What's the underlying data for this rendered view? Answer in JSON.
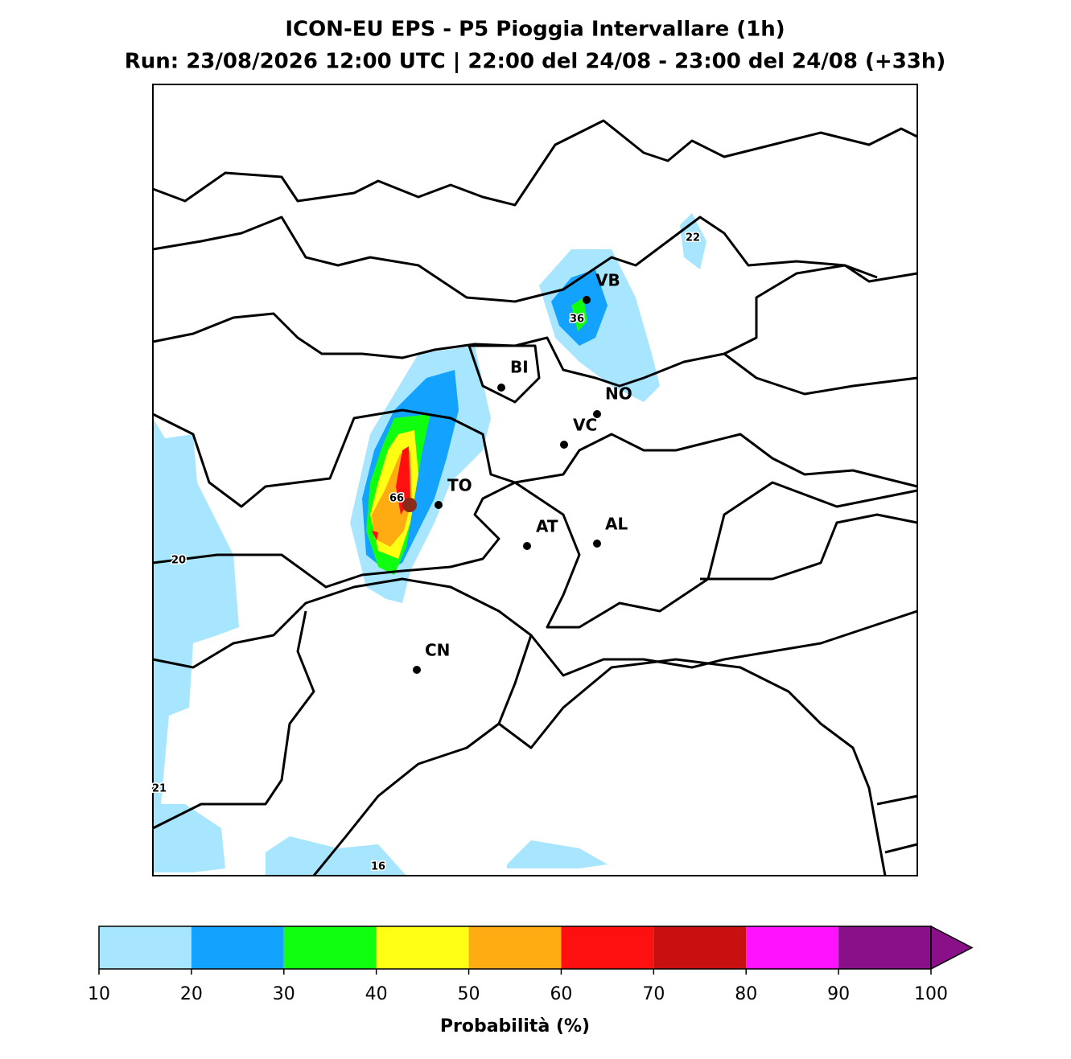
{
  "header": {
    "title": "ICON-EU EPS - P5 Pioggia Intervallare (1h)",
    "subtitle": "Run: 23/08/2026 12:00 UTC | 22:00 del 24/08 - 23:00 del 24/08 (+33h)"
  },
  "map": {
    "cities": [
      "VB",
      "BI",
      "NO",
      "VC",
      "TO",
      "AT",
      "AL",
      "CN"
    ],
    "contour_labels": [
      22,
      36,
      66,
      20,
      21,
      16
    ]
  },
  "colorbar": {
    "label": "Probabilità (%)",
    "ticks": [
      10,
      20,
      30,
      40,
      50,
      60,
      70,
      80,
      90,
      100
    ],
    "colors": [
      "#a8e6ff",
      "#13a3ff",
      "#10ff10",
      "#ffff13",
      "#ffac13",
      "#ff1010",
      "#c81010",
      "#ff13ff",
      "#8a108a"
    ]
  }
}
